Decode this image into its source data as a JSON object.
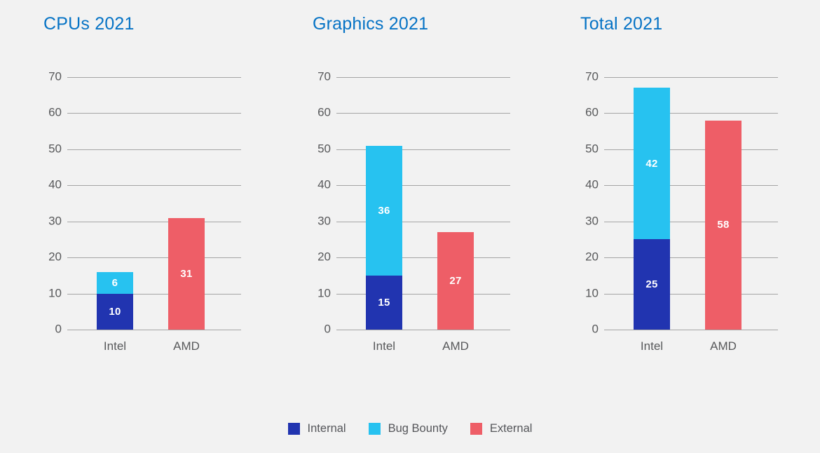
{
  "page": {
    "background": "#f2f2f2"
  },
  "colors": {
    "internal": "#2134b0",
    "bug_bounty": "#27c2f0",
    "external": "#ee5e67",
    "title": "#0673c5",
    "gridline": "#a5a5a5",
    "axis_text": "#58595b",
    "legend_text": "#55565a",
    "value_label": "#ffffff"
  },
  "legend": {
    "items": [
      {
        "label": "Internal",
        "color_key": "internal"
      },
      {
        "label": "Bug Bounty",
        "color_key": "bug_bounty"
      },
      {
        "label": "External",
        "color_key": "external"
      }
    ],
    "position": "bottom-center"
  },
  "chart_data": [
    {
      "type": "bar",
      "stacked": true,
      "title": "CPUs 2021",
      "categories": [
        "Intel",
        "AMD"
      ],
      "series": [
        {
          "name": "Internal",
          "color_key": "internal",
          "values": [
            10,
            0
          ]
        },
        {
          "name": "Bug Bounty",
          "color_key": "bug_bounty",
          "values": [
            6,
            0
          ]
        },
        {
          "name": "External",
          "color_key": "external",
          "values": [
            0,
            31
          ]
        }
      ],
      "totals": {
        "Intel": 16,
        "AMD": 31
      },
      "xlabel": "",
      "ylabel": "",
      "ylim": [
        0,
        70
      ],
      "yticks": [
        0,
        10,
        20,
        30,
        40,
        50,
        60,
        70
      ],
      "grid": true
    },
    {
      "type": "bar",
      "stacked": true,
      "title": "Graphics 2021",
      "categories": [
        "Intel",
        "AMD"
      ],
      "series": [
        {
          "name": "Internal",
          "color_key": "internal",
          "values": [
            15,
            0
          ]
        },
        {
          "name": "Bug Bounty",
          "color_key": "bug_bounty",
          "values": [
            36,
            0
          ]
        },
        {
          "name": "External",
          "color_key": "external",
          "values": [
            0,
            27
          ]
        }
      ],
      "totals": {
        "Intel": 51,
        "AMD": 27
      },
      "xlabel": "",
      "ylabel": "",
      "ylim": [
        0,
        70
      ],
      "yticks": [
        0,
        10,
        20,
        30,
        40,
        50,
        60,
        70
      ],
      "grid": true
    },
    {
      "type": "bar",
      "stacked": true,
      "title": "Total 2021",
      "categories": [
        "Intel",
        "AMD"
      ],
      "series": [
        {
          "name": "Internal",
          "color_key": "internal",
          "values": [
            25,
            0
          ]
        },
        {
          "name": "Bug Bounty",
          "color_key": "bug_bounty",
          "values": [
            42,
            0
          ]
        },
        {
          "name": "External",
          "color_key": "external",
          "values": [
            0,
            58
          ]
        }
      ],
      "totals": {
        "Intel": 67,
        "AMD": 58
      },
      "xlabel": "",
      "ylabel": "",
      "ylim": [
        0,
        70
      ],
      "yticks": [
        0,
        10,
        20,
        30,
        40,
        50,
        60,
        70
      ],
      "grid": true
    }
  ]
}
